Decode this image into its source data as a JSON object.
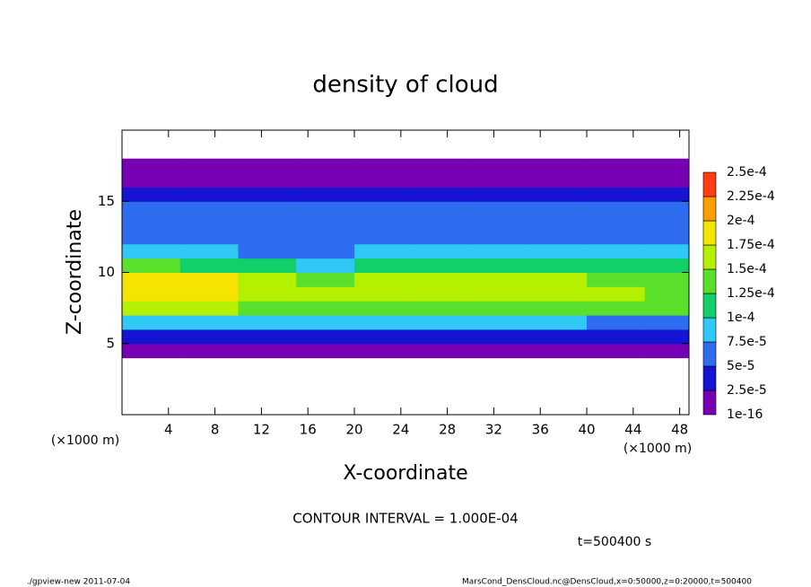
{
  "chart_data": {
    "type": "heatmap",
    "title": "density of cloud",
    "xlabel": "X-coordinate",
    "ylabel": "Z-coordinate",
    "x_unit": "(×1000 m)",
    "z_unit": "(×1000 m)",
    "xlim": [
      0,
      48.8
    ],
    "ylim": [
      0,
      20
    ],
    "xticks": [
      4,
      8,
      12,
      16,
      20,
      24,
      28,
      32,
      36,
      40,
      44,
      48
    ],
    "yticks": [
      5,
      10,
      15
    ],
    "xbins": [
      0,
      5,
      10,
      15,
      20,
      25,
      30,
      35,
      40,
      45,
      50
    ],
    "zbins": [
      0,
      1,
      2,
      3,
      4,
      5,
      6,
      7,
      8,
      9,
      10,
      11,
      12,
      13,
      14,
      15,
      16,
      17,
      18,
      19,
      20
    ],
    "values": [
      [
        0,
        0,
        0,
        0,
        0,
        0,
        0,
        0,
        0,
        0
      ],
      [
        0,
        0,
        0,
        0,
        0,
        0,
        0,
        0,
        0,
        0
      ],
      [
        0,
        0,
        0,
        0,
        0,
        0,
        0,
        0,
        0,
        0
      ],
      [
        0,
        0,
        0,
        0,
        0,
        0,
        0,
        0,
        0,
        0
      ],
      [
        1.5e-05,
        1.5e-05,
        1.5e-05,
        1.5e-05,
        1.5e-05,
        1.5e-05,
        1.5e-05,
        1.5e-05,
        1.5e-05,
        1.5e-05
      ],
      [
        3e-05,
        3e-05,
        3e-05,
        3e-05,
        3e-05,
        3e-05,
        3e-05,
        3e-05,
        3e-05,
        3e-05
      ],
      [
        8e-05,
        8e-05,
        8e-05,
        8e-05,
        8e-05,
        8e-05,
        8e-05,
        8e-05,
        6e-05,
        6e-05
      ],
      [
        0.00016,
        0.00016,
        0.00014,
        0.00014,
        0.00014,
        0.00014,
        0.00014,
        0.00014,
        0.00013,
        0.00013
      ],
      [
        0.00019,
        0.00019,
        0.00016,
        0.00016,
        0.00016,
        0.00016,
        0.00016,
        0.00016,
        0.00015,
        0.00014
      ],
      [
        0.00019,
        0.00019,
        0.00015,
        0.00014,
        0.00015,
        0.00015,
        0.00015,
        0.00015,
        0.00014,
        0.00014
      ],
      [
        0.00013,
        0.00011,
        0.00011,
        9e-05,
        0.00011,
        0.00011,
        0.00011,
        0.00011,
        0.00011,
        0.00011
      ],
      [
        8e-05,
        8e-05,
        6e-05,
        6e-05,
        8e-05,
        8e-05,
        8e-05,
        8e-05,
        8e-05,
        8e-05
      ],
      [
        6e-05,
        6e-05,
        6e-05,
        6e-05,
        6e-05,
        6e-05,
        6e-05,
        6e-05,
        6e-05,
        6e-05
      ],
      [
        6e-05,
        6e-05,
        6e-05,
        6e-05,
        6e-05,
        6e-05,
        6e-05,
        6e-05,
        6e-05,
        6e-05
      ],
      [
        5.5e-05,
        5.5e-05,
        5.5e-05,
        5.5e-05,
        5.5e-05,
        5.5e-05,
        5.5e-05,
        5.5e-05,
        5.5e-05,
        5.5e-05
      ],
      [
        4e-05,
        4e-05,
        4e-05,
        4e-05,
        4e-05,
        4e-05,
        4e-05,
        4e-05,
        4e-05,
        4e-05
      ],
      [
        2e-05,
        2e-05,
        2e-05,
        2e-05,
        2e-05,
        2e-05,
        2e-05,
        2e-05,
        2e-05,
        2e-05
      ],
      [
        1e-05,
        1e-05,
        1e-05,
        1e-05,
        1e-05,
        1e-05,
        1e-05,
        1e-05,
        1e-05,
        1e-05
      ],
      [
        0,
        0,
        0,
        0,
        0,
        0,
        0,
        0,
        0,
        0
      ],
      [
        0,
        0,
        0,
        0,
        0,
        0,
        0,
        0,
        0,
        0
      ]
    ],
    "levels": [
      1e-16,
      {
        "value": 2.5e-05,
        "label": "2.5e-5"
      },
      {
        "value": 5e-05,
        "label": "5e-5"
      },
      {
        "value": 7.5e-05,
        "label": "7.5e-5"
      },
      {
        "value": 0.0001,
        "label": "1e-4"
      },
      {
        "value": 0.000125,
        "label": "1.25e-4"
      },
      {
        "value": 0.00015,
        "label": "1.5e-4"
      },
      {
        "value": 0.000175,
        "label": "1.75e-4"
      },
      {
        "value": 0.0002,
        "label": "2e-4"
      },
      {
        "value": 0.000225,
        "label": "2.25e-4"
      },
      {
        "value": 0.00025,
        "label": "2.5e-4"
      }
    ],
    "colors": [
      "#7800b4",
      "#1414d2",
      "#2e6cf0",
      "#30c8f5",
      "#12d068",
      "#5ae02a",
      "#b4f000",
      "#f5e400",
      "#ff9c00",
      "#ff3c14"
    ],
    "contour_interval": "CONTOUR INTERVAL = 1.000E-04",
    "time": "t=500400 s",
    "footer_left": "./gpview-new  2011-07-04",
    "footer_right": "MarsCond_DensCloud.nc@DensCloud,x=0:50000,z=0:20000,t=500400"
  }
}
